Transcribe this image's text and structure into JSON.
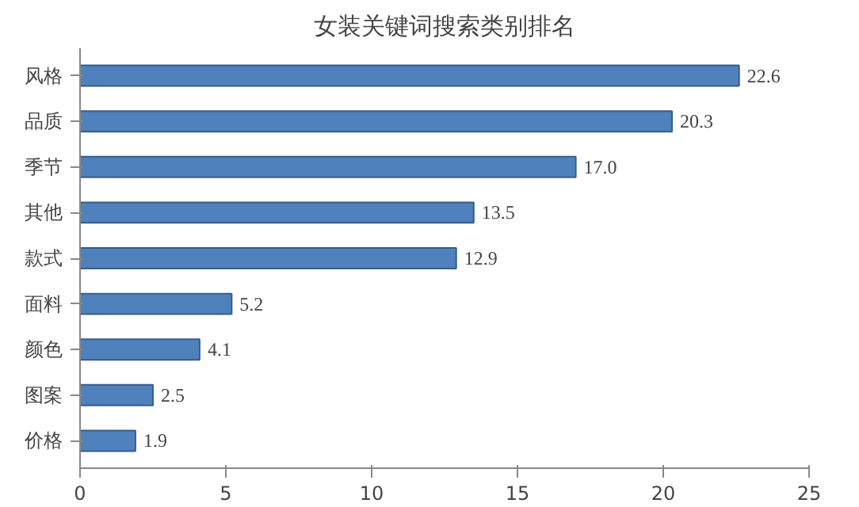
{
  "chart_data": {
    "type": "bar",
    "orientation": "horizontal",
    "title": "女装关键词搜索类别排名",
    "categories": [
      "风格",
      "品质",
      "季节",
      "其他",
      "款式",
      "面料",
      "颜色",
      "图案",
      "价格"
    ],
    "values": [
      22.6,
      20.3,
      17.0,
      13.5,
      12.9,
      5.2,
      4.1,
      2.5,
      1.9
    ],
    "value_labels": [
      "22.6",
      "20.3",
      "17.0",
      "13.5",
      "12.9",
      "5.2",
      "4.1",
      "2.5",
      "1.9"
    ],
    "color": "#4f81bd",
    "xlim": [
      0,
      25
    ],
    "xticks": [
      0,
      5,
      10,
      15,
      20,
      25
    ],
    "grid": false
  }
}
